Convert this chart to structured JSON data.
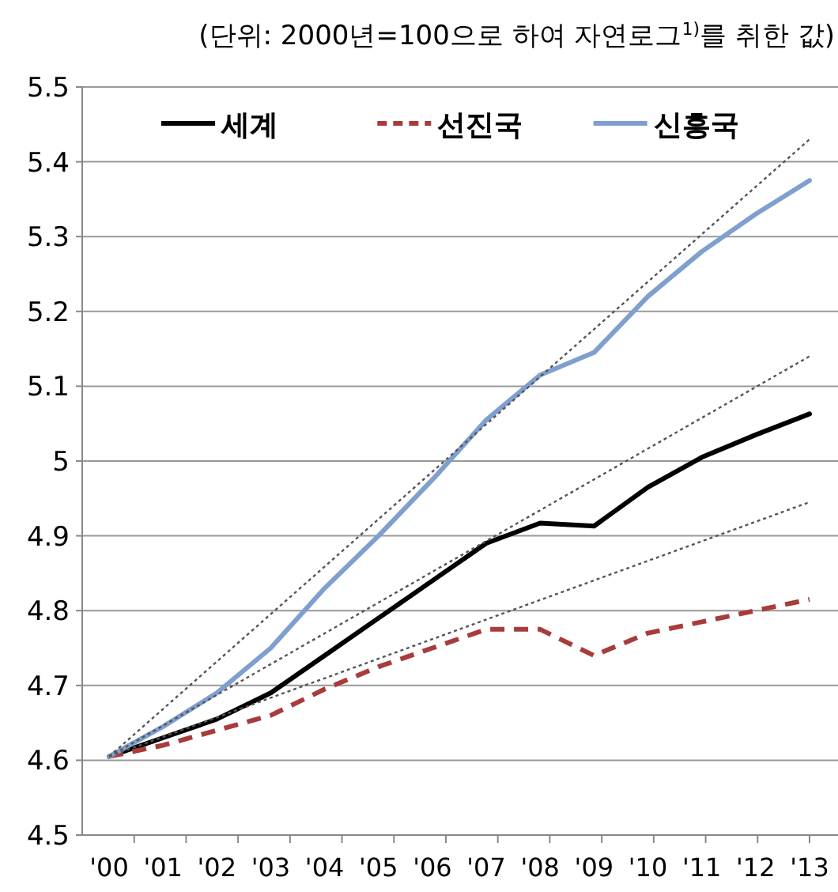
{
  "chart_data": {
    "type": "line",
    "title": "(단위: 2000년=100으로 하여 자연로그$^{1)}$를 취한 값)",
    "categories": [
      "'00",
      "'01",
      "'02",
      "'03",
      "'04",
      "'05",
      "'06",
      "'07",
      "'08",
      "'09",
      "'10",
      "'11",
      "'12",
      "'13"
    ],
    "series": [
      {
        "name": "세계",
        "color": "#000000",
        "line_style": "solid",
        "values": [
          4.605,
          4.63,
          4.655,
          4.69,
          4.74,
          4.79,
          4.84,
          4.89,
          4.917,
          4.913,
          4.965,
          5.005,
          5.035,
          5.063
        ]
      },
      {
        "name": "선진국",
        "color": "#a83c3c",
        "line_style": "dashed",
        "values": [
          4.605,
          4.62,
          4.64,
          4.66,
          4.695,
          4.725,
          4.75,
          4.775,
          4.775,
          4.74,
          4.77,
          4.785,
          4.8,
          4.815
        ]
      },
      {
        "name": "신흥국",
        "color": "#7f9fcf",
        "line_style": "solid",
        "values": [
          4.605,
          4.645,
          4.69,
          4.75,
          4.83,
          4.9,
          4.975,
          5.055,
          5.115,
          5.145,
          5.22,
          5.28,
          5.33,
          5.375
        ]
      },
      {
        "color": "#555555",
        "line_style": "dotted",
        "x": [
          "'00",
          "'13"
        ],
        "values": [
          4.605,
          5.43
        ]
      },
      {
        "color": "#555555",
        "line_style": "dotted",
        "x": [
          "'00",
          "'13"
        ],
        "values": [
          4.605,
          5.14
        ]
      },
      {
        "color": "#555555",
        "line_style": "dotted",
        "x": [
          "'00",
          "'13"
        ],
        "values": [
          4.605,
          4.945
        ]
      }
    ],
    "ylim": [
      4.5,
      5.5
    ],
    "yticks": [
      4.5,
      4.6,
      4.7,
      4.8,
      4.9,
      5,
      5.1,
      5.2,
      5.3,
      5.4,
      5.5
    ],
    "grid": "y",
    "legend": "top",
    "marker": "none"
  }
}
